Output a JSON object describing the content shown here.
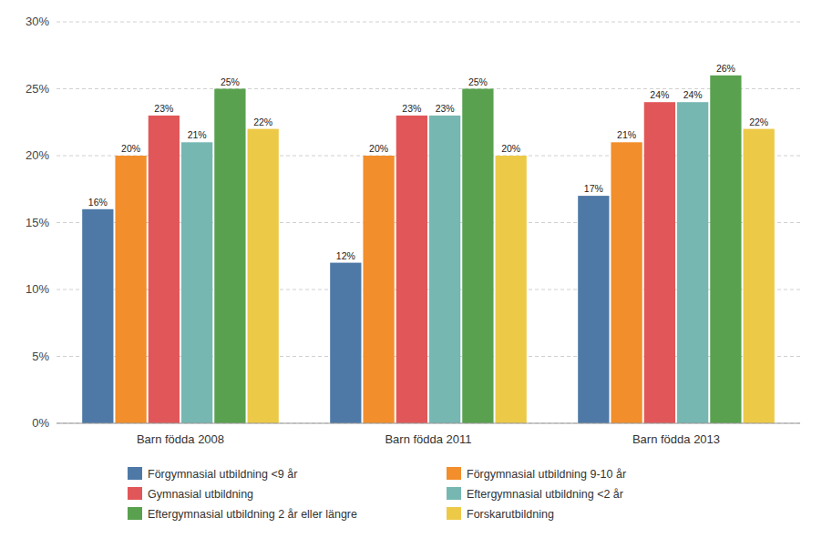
{
  "chart_data": {
    "type": "bar",
    "categories": [
      "Barn födda 2008",
      "Barn födda 2011",
      "Barn födda 2013"
    ],
    "series": [
      {
        "name": "Förgymnasial utbildning  <9 år",
        "values": [
          16,
          12,
          17
        ],
        "value_labels": [
          "16%",
          "12%",
          "17%"
        ]
      },
      {
        "name": "Förgymnasial utbildning 9-10 år",
        "values": [
          20,
          20,
          21
        ],
        "value_labels": [
          "20%",
          "20%",
          "21%"
        ]
      },
      {
        "name": "Gymnasial utbildning",
        "values": [
          23,
          23,
          24
        ],
        "value_labels": [
          "23%",
          "23%",
          "24%"
        ]
      },
      {
        "name": "Eftergymnasial utbildning <2 år",
        "values": [
          21,
          23,
          24
        ],
        "value_labels": [
          "21%",
          "23%",
          "24%"
        ]
      },
      {
        "name": "Eftergymnasial utbildning 2 år eller längre",
        "values": [
          25,
          25,
          26
        ],
        "value_labels": [
          "25%",
          "25%",
          "26%"
        ]
      },
      {
        "name": "Forskarutbildning",
        "values": [
          22,
          20,
          22
        ],
        "value_labels": [
          "22%",
          "20%",
          "22%"
        ]
      }
    ],
    "ylim": [
      0,
      30
    ],
    "yticks": [
      {
        "value": 0,
        "label": "0%"
      },
      {
        "value": 5,
        "label": "5%"
      },
      {
        "value": 10,
        "label": "10%"
      },
      {
        "value": 15,
        "label": "15%"
      },
      {
        "value": 20,
        "label": "20%"
      },
      {
        "value": 25,
        "label": "25%"
      },
      {
        "value": 30,
        "label": "30%"
      }
    ],
    "grid": true,
    "data_labels": true,
    "legend": "lower center"
  }
}
